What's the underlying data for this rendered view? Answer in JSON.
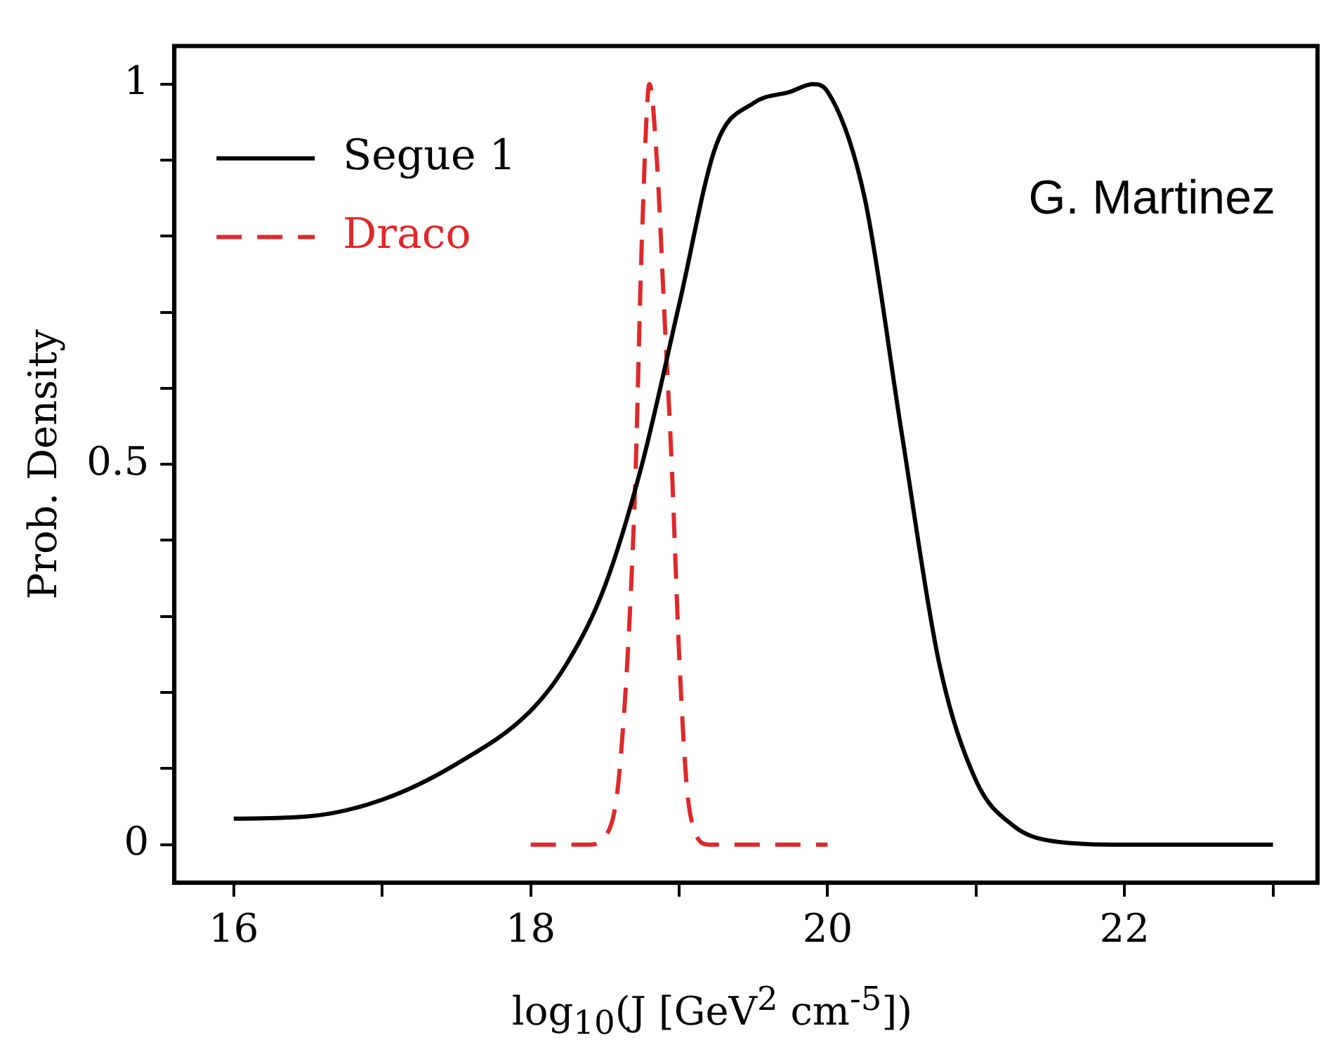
{
  "chart_data": {
    "type": "line",
    "xlabel": "log$_{10}$(J [GeV$^{2}$ cm$^{-5}$])",
    "ylabel": "Prob. Density",
    "annotations": [
      "G. Martinez"
    ],
    "xlim": [
      15.6,
      23.3
    ],
    "xticks": [
      16,
      {
        "value": 17,
        "label": null
      },
      18,
      {
        "value": 19,
        "label": null
      },
      20,
      {
        "value": 21,
        "label": null
      },
      22,
      {
        "value": 23,
        "label": null
      }
    ],
    "ylim": [
      -0.05,
      1.05
    ],
    "yticks": [
      0,
      {
        "value": 0.1,
        "label": null
      },
      {
        "value": 0.2,
        "label": null
      },
      {
        "value": 0.3,
        "label": null
      },
      {
        "value": 0.4,
        "label": null
      },
      0.5,
      {
        "value": 0.6,
        "label": null
      },
      {
        "value": 0.7,
        "label": null
      },
      {
        "value": 0.8,
        "label": null
      },
      {
        "value": 0.9,
        "label": null
      },
      1
    ],
    "grid": false,
    "legend": "top left",
    "marker": "none",
    "series": [
      {
        "name": "Segue 1",
        "color": "#000000",
        "line_style": "solid",
        "x": [
          16,
          16.5,
          17,
          17.5,
          18,
          18.25,
          18.5,
          18.75,
          19,
          19.25,
          19.5,
          19.75,
          19.9,
          20,
          20.25,
          20.5,
          20.75,
          21,
          21.25,
          21.5,
          22,
          23
        ],
        "values": [
          0.034,
          0.037,
          0.059,
          0.106,
          0.176,
          0.24,
          0.34,
          0.5,
          0.71,
          0.92,
          0.975,
          0.99,
          1.0,
          0.99,
          0.85,
          0.54,
          0.24,
          0.084,
          0.025,
          0.005,
          0,
          0
        ]
      },
      {
        "name": "Draco",
        "color": "#e0282a",
        "line_style": "dashed",
        "x": [
          18,
          18.4,
          18.5,
          18.6,
          18.7,
          18.75,
          18.8,
          18.85,
          18.9,
          18.95,
          19,
          19.05,
          19.1,
          19.2,
          20
        ],
        "values": [
          0,
          0,
          0.01,
          0.1,
          0.45,
          0.8,
          1.0,
          0.9,
          0.7,
          0.5,
          0.25,
          0.08,
          0.02,
          0,
          0
        ]
      }
    ]
  }
}
